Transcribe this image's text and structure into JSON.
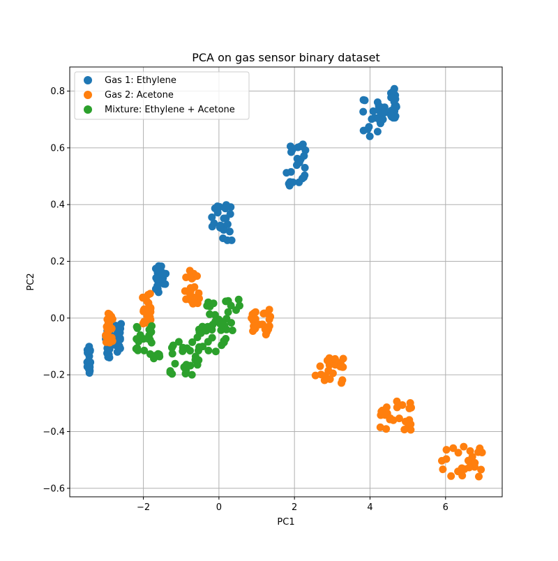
{
  "chart_data": {
    "type": "scatter",
    "title": "PCA on gas sensor binary dataset",
    "xlabel": "PC1",
    "ylabel": "PC2",
    "xlim": [
      -3.95,
      7.5
    ],
    "ylim": [
      -0.63,
      0.885
    ],
    "xticks": [
      -2,
      0,
      2,
      4,
      6
    ],
    "yticks": [
      -0.6,
      -0.4,
      -0.2,
      0.0,
      0.2,
      0.4,
      0.6,
      0.8
    ],
    "xtick_labels": [
      "−2",
      "0",
      "2",
      "4",
      "6"
    ],
    "ytick_labels": [
      "−0.6",
      "−0.4",
      "−0.2",
      "0.0",
      "0.2",
      "0.4",
      "0.6",
      "0.8"
    ],
    "grid": true,
    "legend_position": "top-left",
    "series": [
      {
        "name": "Gas 1: Ethylene",
        "color": "#1f77b4",
        "clusters": [
          {
            "x": [
              -3.5,
              -3.4
            ],
            "y": [
              -0.205,
              -0.1
            ]
          },
          {
            "x": [
              -3.0,
              -2.85
            ],
            "y": [
              -0.14,
              -0.02
            ]
          },
          {
            "x": [
              -2.75,
              -2.55
            ],
            "y": [
              -0.12,
              -0.02
            ]
          },
          {
            "x": [
              -1.7,
              -1.4
            ],
            "y": [
              0.09,
              0.185
            ]
          },
          {
            "x": [
              -0.2,
              0.35
            ],
            "y": [
              0.27,
              0.4
            ]
          },
          {
            "x": [
              1.75,
              2.4
            ],
            "y": [
              0.46,
              0.62
            ]
          },
          {
            "x": [
              3.8,
              4.4
            ],
            "y": [
              0.64,
              0.77
            ]
          },
          {
            "x": [
              4.55,
              4.7
            ],
            "y": [
              0.7,
              0.81
            ]
          }
        ]
      },
      {
        "name": "Gas 2: Acetone",
        "color": "#ff7f0e",
        "clusters": [
          {
            "x": [
              -3.0,
              -2.8
            ],
            "y": [
              -0.09,
              0.02
            ]
          },
          {
            "x": [
              -2.05,
              -1.8
            ],
            "y": [
              -0.02,
              0.09
            ]
          },
          {
            "x": [
              -0.9,
              -0.5
            ],
            "y": [
              0.05,
              0.17
            ]
          },
          {
            "x": [
              0.8,
              1.4
            ],
            "y": [
              -0.06,
              0.03
            ]
          },
          {
            "x": [
              2.55,
              3.3
            ],
            "y": [
              -0.23,
              -0.14
            ]
          },
          {
            "x": [
              4.2,
              5.15
            ],
            "y": [
              -0.4,
              -0.29
            ]
          },
          {
            "x": [
              5.9,
              7.0
            ],
            "y": [
              -0.56,
              -0.44
            ]
          }
        ]
      },
      {
        "name": "Mixture: Ethylene + Acetone",
        "color": "#2ca02c",
        "clusters": [
          {
            "x": [
              -2.2,
              -1.5
            ],
            "y": [
              -0.15,
              -0.02
            ]
          },
          {
            "x": [
              -1.3,
              -0.5
            ],
            "y": [
              -0.2,
              -0.07
            ]
          },
          {
            "x": [
              -0.7,
              0.2
            ],
            "y": [
              -0.12,
              0.0
            ]
          },
          {
            "x": [
              -0.35,
              0.55
            ],
            "y": [
              -0.05,
              0.07
            ]
          }
        ]
      }
    ]
  }
}
